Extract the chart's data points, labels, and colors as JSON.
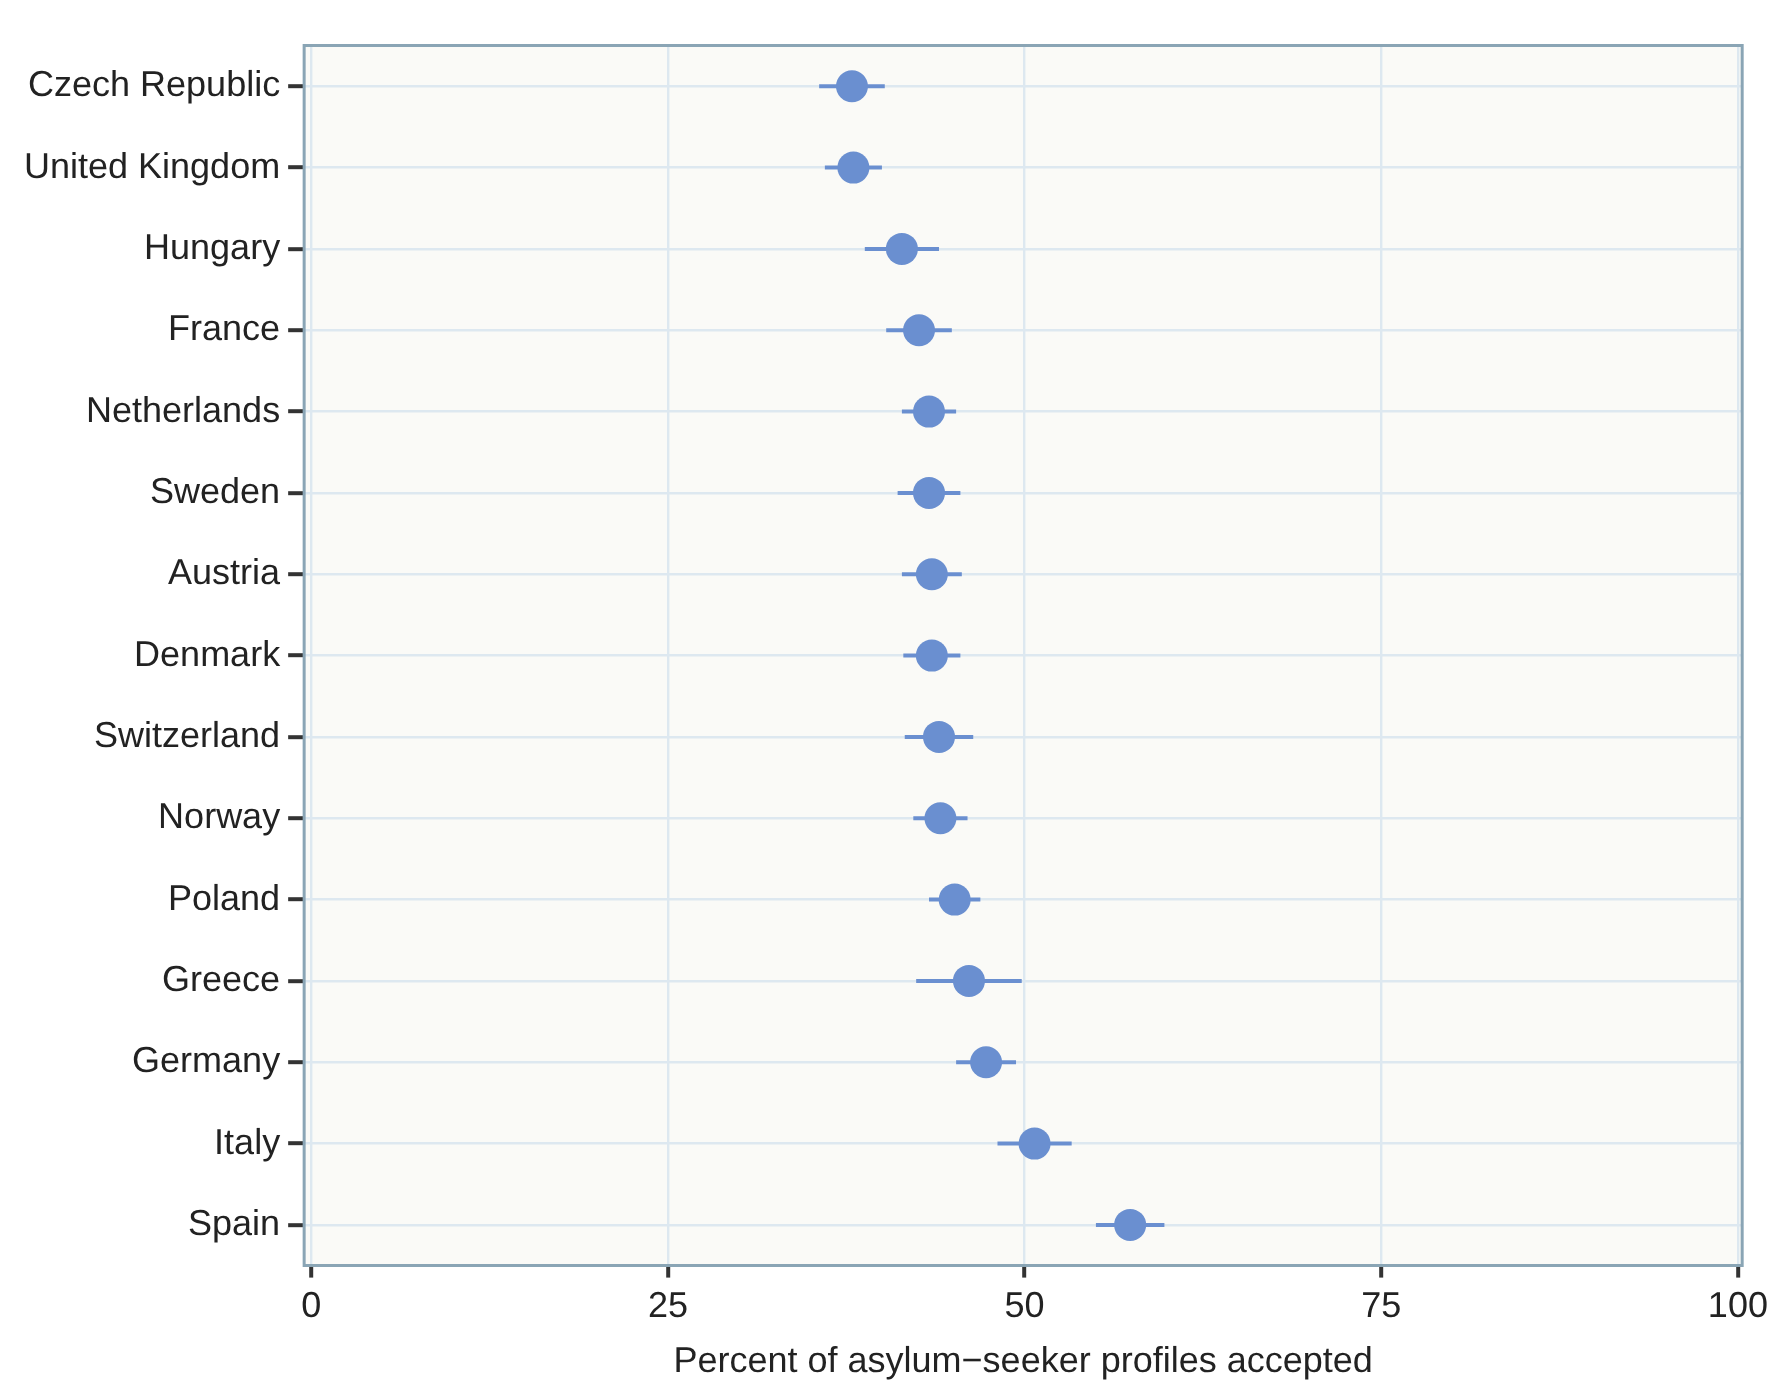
{
  "chart_data": {
    "type": "scatter",
    "orientation": "horizontal",
    "xlabel": "Percent of asylum−seeker profiles accepted",
    "categories": [
      "Czech Republic",
      "United Kingdom",
      "Hungary",
      "France",
      "Netherlands",
      "Sweden",
      "Austria",
      "Denmark",
      "Switzerland",
      "Norway",
      "Poland",
      "Greece",
      "Germany",
      "Italy",
      "Spain"
    ],
    "values": [
      37.9,
      38.0,
      41.4,
      42.6,
      43.3,
      43.3,
      43.5,
      43.5,
      44.0,
      44.1,
      45.1,
      46.1,
      47.3,
      50.7,
      57.4
    ],
    "errors": [
      2.3,
      2.0,
      2.6,
      2.3,
      1.9,
      2.2,
      2.1,
      2.0,
      2.4,
      1.9,
      1.8,
      3.7,
      2.1,
      2.6,
      2.4
    ],
    "color": "#6a8fd0",
    "marker": "circle",
    "grid": true,
    "xlim": [
      -0.5,
      100.3
    ],
    "xticks": [
      0,
      25,
      50,
      75,
      100
    ]
  }
}
